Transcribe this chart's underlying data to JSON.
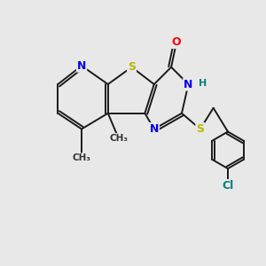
{
  "bg_color": "#e8e8e8",
  "atom_colors": {
    "C": "#000000",
    "N": "#0000ee",
    "S": "#b8b800",
    "O": "#ff0000",
    "H": "#008080",
    "Cl": "#008080"
  },
  "bond_color": "#1a1a1a",
  "bond_width": 1.4,
  "figsize": [
    3.0,
    3.0
  ],
  "dpi": 100,
  "font_size": 9,
  "font_size_small": 8
}
